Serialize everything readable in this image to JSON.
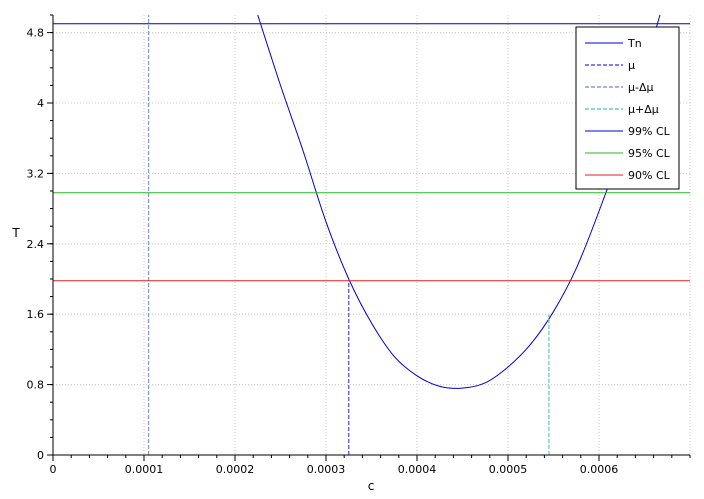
{
  "chart_data": {
    "type": "line",
    "xlabel": "c",
    "ylabel": "T",
    "xlim": [
      0,
      0.0007
    ],
    "ylim": [
      0,
      5
    ],
    "x_ticks": [
      0,
      0.0001,
      0.0002,
      0.0003,
      0.0004,
      0.0005,
      0.0006
    ],
    "x_tick_labels": [
      "0",
      "0.0001",
      "0.0002",
      "0.0003",
      "0.0004",
      "0.0005",
      "0.0006"
    ],
    "y_ticks": [
      0,
      0.8,
      1.6,
      2.4,
      3.2,
      4,
      4.8
    ],
    "y_tick_labels": [
      "0",
      "0.8",
      "1.6",
      "2.4",
      "3.2",
      "4",
      "4.8"
    ],
    "grid": true,
    "legend_position": "top-right",
    "series": [
      {
        "name": "Tn",
        "kind": "curve",
        "color": "#0000cc",
        "x": [
          0.000225,
          0.00025,
          0.000275,
          0.0003,
          0.000325,
          0.00035,
          0.000375,
          0.0004,
          0.000425,
          0.00045,
          0.000475,
          0.0005,
          0.000525,
          0.00055,
          0.000575,
          0.0006,
          0.000625,
          0.00065,
          0.000667
        ],
        "y": [
          5.0,
          4.2,
          3.45,
          2.65,
          2.0,
          1.5,
          1.12,
          0.9,
          0.78,
          0.76,
          0.82,
          1.0,
          1.26,
          1.63,
          2.12,
          2.77,
          3.5,
          4.4,
          5.0
        ]
      },
      {
        "name": "μ",
        "kind": "vline",
        "color": "#5555ee",
        "dash": "dashed",
        "x": 0.000325,
        "y_top": 2.0
      },
      {
        "name": "μ-Δμ",
        "kind": "vline",
        "color": "#8899dd",
        "dash": "dashed",
        "x": 0.000105,
        "y_top": 5.0
      },
      {
        "name": "μ+Δμ",
        "kind": "vline",
        "color": "#66cccc",
        "dash": "dashed",
        "x": 0.000545,
        "y_top": 1.6
      },
      {
        "name": "99% CL",
        "kind": "hline",
        "color": "#0000cc",
        "y": 4.9
      },
      {
        "name": "95% CL",
        "kind": "hline",
        "color": "#22bb22",
        "y": 2.98
      },
      {
        "name": "90% CL",
        "kind": "hline",
        "color": "#dd2222",
        "y": 1.98
      }
    ]
  }
}
